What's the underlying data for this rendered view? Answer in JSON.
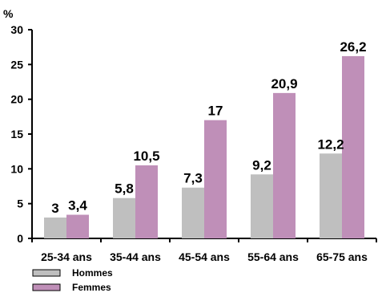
{
  "chart_data": {
    "type": "bar",
    "title": "",
    "xlabel": "",
    "ylabel": "%",
    "ylim": [
      0,
      30
    ],
    "yticks": [
      0,
      5,
      10,
      15,
      20,
      25,
      30
    ],
    "grid": false,
    "legend_position": "bottom-left",
    "categories": [
      "25-34 ans",
      "35-44 ans",
      "45-54 ans",
      "55-64 ans",
      "65-75 ans"
    ],
    "series": [
      {
        "name": "Hommes",
        "color": "#bfbfbf",
        "values": [
          3,
          5.8,
          7.3,
          9.2,
          12.2
        ],
        "labels": [
          "3",
          "5,8",
          "7,3",
          "9,2",
          "12,2"
        ]
      },
      {
        "name": "Femmes",
        "color": "#bf8fb8",
        "values": [
          3.4,
          10.5,
          17,
          20.9,
          26.2
        ],
        "labels": [
          "3,4",
          "10,5",
          "17",
          "20,9",
          "26,2"
        ]
      }
    ]
  }
}
